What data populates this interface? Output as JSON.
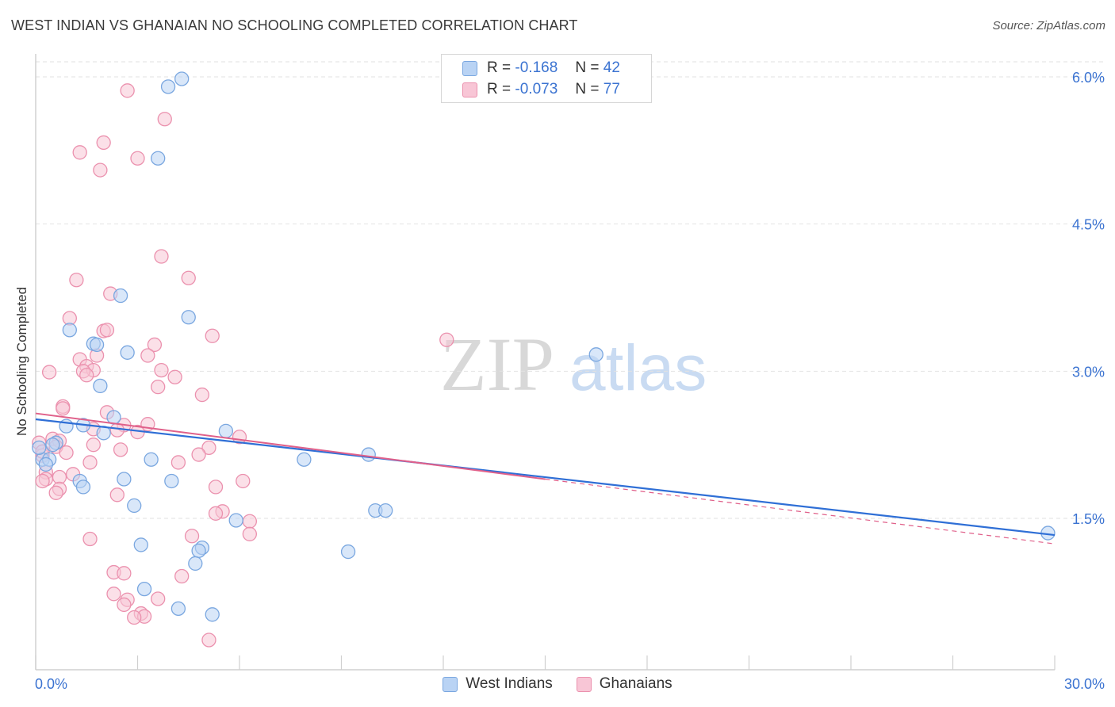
{
  "header": {
    "title": "WEST INDIAN VS GHANAIAN NO SCHOOLING COMPLETED CORRELATION CHART",
    "source": "Source: ZipAtlas.com"
  },
  "watermark": {
    "zip": "ZIP",
    "atlas": "atlas"
  },
  "stat_legend": {
    "rows": [
      {
        "r_label": "R =",
        "r_value": "-0.168",
        "n_label": "N =",
        "n_value": "42"
      },
      {
        "r_label": "R =",
        "r_value": "-0.073",
        "n_label": "N =",
        "n_value": "77"
      }
    ]
  },
  "bottom_legend": {
    "items": [
      {
        "label": "West Indians"
      },
      {
        "label": "Ghanaians"
      }
    ]
  },
  "colors": {
    "blue_fill": "#b9d3f4",
    "blue_stroke": "#7aa7e0",
    "blue_line": "#2f6fd6",
    "pink_fill": "#f8c6d6",
    "pink_stroke": "#eb91ae",
    "pink_line": "#e0608a",
    "tick_label": "#3b73d1",
    "grid": "#e2e2e2"
  },
  "chart_data": {
    "type": "scatter",
    "title": "WEST INDIAN VS GHANAIAN NO SCHOOLING COMPLETED CORRELATION CHART",
    "xlabel": "",
    "ylabel": "No Schooling Completed",
    "xlim": [
      0,
      30
    ],
    "ylim": [
      0.1,
      6.25
    ],
    "x_tick_labels": [
      "0.0%",
      "30.0%"
    ],
    "y_ticks": [
      1.5,
      3.0,
      4.5,
      6.0
    ],
    "y_tick_labels": [
      "1.5%",
      "3.0%",
      "4.5%",
      "6.0%"
    ],
    "grid": true,
    "series": [
      {
        "name": "West Indians",
        "r": -0.168,
        "n": 42,
        "trend": {
          "x0": 0,
          "y0": 2.51,
          "x1": 30,
          "y1": 1.33
        },
        "points": [
          [
            4.3,
            5.98
          ],
          [
            3.9,
            5.9
          ],
          [
            3.6,
            5.17
          ],
          [
            2.5,
            3.77
          ],
          [
            4.5,
            3.55
          ],
          [
            1.0,
            3.42
          ],
          [
            1.7,
            3.28
          ],
          [
            1.8,
            3.27
          ],
          [
            2.7,
            3.19
          ],
          [
            16.5,
            3.17
          ],
          [
            1.9,
            2.85
          ],
          [
            2.3,
            2.53
          ],
          [
            1.4,
            2.45
          ],
          [
            0.9,
            2.44
          ],
          [
            5.6,
            2.39
          ],
          [
            2.0,
            2.37
          ],
          [
            0.6,
            2.27
          ],
          [
            0.5,
            2.25
          ],
          [
            0.2,
            2.1
          ],
          [
            0.4,
            2.1
          ],
          [
            9.8,
            2.15
          ],
          [
            7.9,
            2.1
          ],
          [
            3.4,
            2.1
          ],
          [
            0.3,
            2.05
          ],
          [
            2.6,
            1.9
          ],
          [
            4.0,
            1.88
          ],
          [
            1.3,
            1.88
          ],
          [
            1.4,
            1.82
          ],
          [
            2.9,
            1.63
          ],
          [
            10.0,
            1.58
          ],
          [
            10.3,
            1.58
          ],
          [
            5.9,
            1.48
          ],
          [
            3.1,
            1.23
          ],
          [
            4.9,
            1.2
          ],
          [
            4.8,
            1.17
          ],
          [
            9.2,
            1.16
          ],
          [
            4.7,
            1.04
          ],
          [
            3.2,
            0.78
          ],
          [
            4.2,
            0.58
          ],
          [
            5.2,
            0.52
          ],
          [
            29.8,
            1.35
          ],
          [
            0.1,
            2.22
          ]
        ]
      },
      {
        "name": "Ghanaians",
        "r": -0.073,
        "n": 77,
        "trend": {
          "x0": 0,
          "y0": 2.57,
          "x1": 15,
          "y1": 1.9,
          "dash_x1": 30,
          "dash_y1": 1.24
        },
        "points": [
          [
            2.7,
            5.86
          ],
          [
            3.8,
            5.57
          ],
          [
            2.0,
            5.33
          ],
          [
            1.3,
            5.23
          ],
          [
            3.0,
            5.17
          ],
          [
            1.9,
            5.05
          ],
          [
            3.7,
            4.17
          ],
          [
            4.5,
            3.95
          ],
          [
            1.2,
            3.93
          ],
          [
            2.2,
            3.79
          ],
          [
            1.0,
            3.54
          ],
          [
            2.0,
            3.41
          ],
          [
            2.1,
            3.42
          ],
          [
            5.2,
            3.36
          ],
          [
            12.1,
            3.32
          ],
          [
            3.5,
            3.27
          ],
          [
            1.8,
            3.16
          ],
          [
            3.3,
            3.16
          ],
          [
            1.3,
            3.12
          ],
          [
            1.5,
            3.05
          ],
          [
            1.7,
            3.01
          ],
          [
            0.4,
            2.99
          ],
          [
            1.4,
            3.0
          ],
          [
            3.7,
            3.01
          ],
          [
            4.1,
            2.94
          ],
          [
            1.5,
            2.96
          ],
          [
            3.6,
            2.84
          ],
          [
            4.9,
            2.76
          ],
          [
            0.8,
            2.64
          ],
          [
            0.8,
            2.62
          ],
          [
            2.1,
            2.58
          ],
          [
            3.3,
            2.46
          ],
          [
            2.6,
            2.45
          ],
          [
            1.7,
            2.41
          ],
          [
            2.4,
            2.4
          ],
          [
            3.0,
            2.38
          ],
          [
            6.0,
            2.33
          ],
          [
            0.5,
            2.31
          ],
          [
            0.7,
            2.29
          ],
          [
            1.7,
            2.25
          ],
          [
            0.6,
            2.23
          ],
          [
            2.5,
            2.2
          ],
          [
            5.1,
            2.22
          ],
          [
            0.9,
            2.17
          ],
          [
            4.8,
            2.15
          ],
          [
            1.6,
            2.07
          ],
          [
            4.2,
            2.07
          ],
          [
            0.3,
            1.97
          ],
          [
            1.1,
            1.95
          ],
          [
            0.3,
            1.9
          ],
          [
            0.7,
            1.92
          ],
          [
            6.1,
            1.88
          ],
          [
            0.2,
            1.88
          ],
          [
            0.7,
            1.8
          ],
          [
            5.3,
            1.82
          ],
          [
            0.6,
            1.76
          ],
          [
            2.4,
            1.74
          ],
          [
            5.5,
            1.57
          ],
          [
            5.3,
            1.55
          ],
          [
            6.3,
            1.47
          ],
          [
            4.6,
            1.32
          ],
          [
            6.3,
            1.34
          ],
          [
            1.6,
            1.29
          ],
          [
            2.3,
            0.95
          ],
          [
            2.6,
            0.94
          ],
          [
            4.3,
            0.91
          ],
          [
            2.3,
            0.73
          ],
          [
            2.7,
            0.67
          ],
          [
            3.6,
            0.68
          ],
          [
            2.6,
            0.62
          ],
          [
            3.1,
            0.53
          ],
          [
            3.2,
            0.5
          ],
          [
            2.9,
            0.49
          ],
          [
            5.1,
            0.26
          ],
          [
            0.1,
            2.27
          ],
          [
            0.2,
            2.14
          ],
          [
            0.2,
            2.18
          ]
        ]
      }
    ]
  }
}
